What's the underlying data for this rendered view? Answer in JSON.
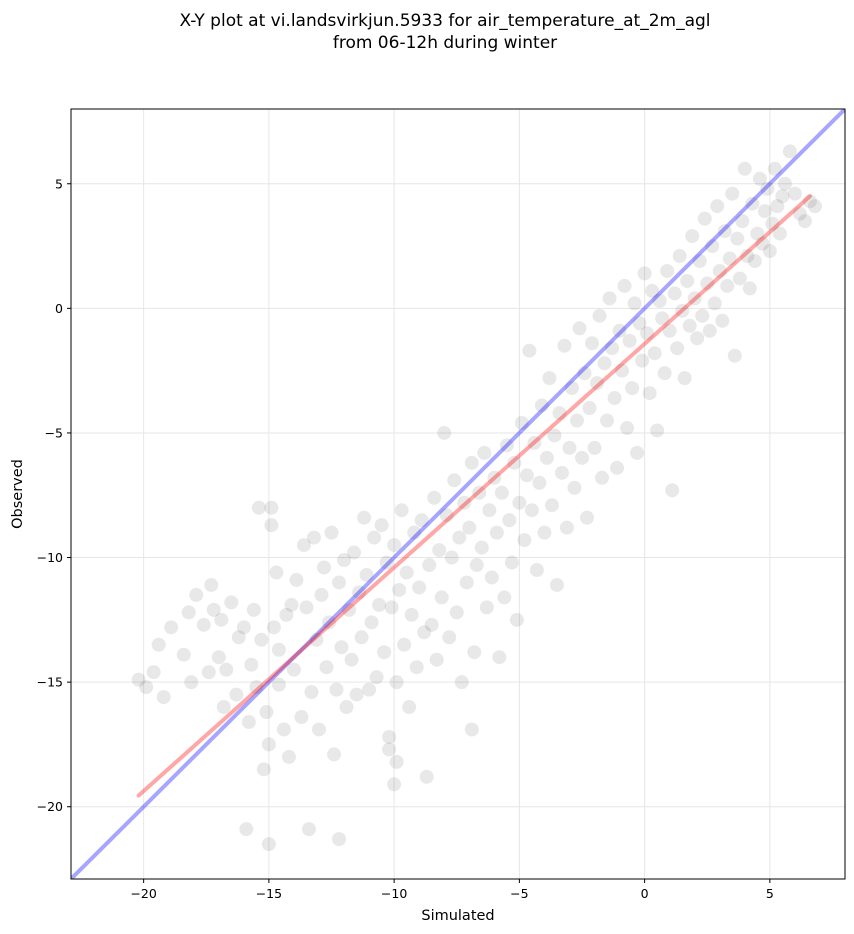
{
  "chart_data": {
    "type": "scatter",
    "title_lines": [
      "X-Y plot at vi.landsvirkjun.5933 for air_temperature_at_2m_agl",
      "from 06-12h during winter"
    ],
    "xlabel": "Simulated",
    "ylabel": "Observed",
    "xlim": [
      -22.9,
      8.0
    ],
    "ylim": [
      -22.9,
      8.0
    ],
    "xticks": [
      -20,
      -15,
      -10,
      -5,
      0,
      5
    ],
    "yticks": [
      -20,
      -15,
      -10,
      -5,
      0,
      5
    ],
    "xtick_labels": [
      "−20",
      "−15",
      "−10",
      "−5",
      "0",
      "5"
    ],
    "ytick_labels": [
      "−20",
      "−15",
      "−10",
      "−5",
      "0",
      "5"
    ],
    "grid": true,
    "point_color": "#000000",
    "point_opacity": 0.09,
    "identity_line": {
      "from": [
        -22.9,
        -22.9
      ],
      "to": [
        8.0,
        8.0
      ],
      "color": "#0000ff"
    },
    "fit_line": {
      "from": [
        -20.2,
        -19.55
      ],
      "to": [
        6.6,
        4.5
      ],
      "color": "#ff0000"
    },
    "points": [
      [
        -20.2,
        -14.9
      ],
      [
        -19.9,
        -15.2
      ],
      [
        -19.6,
        -14.6
      ],
      [
        -19.4,
        -13.5
      ],
      [
        -19.2,
        -15.6
      ],
      [
        -18.9,
        -12.8
      ],
      [
        -18.4,
        -13.9
      ],
      [
        -18.2,
        -12.2
      ],
      [
        -18.1,
        -15.0
      ],
      [
        -17.9,
        -11.5
      ],
      [
        -17.6,
        -12.7
      ],
      [
        -17.4,
        -14.6
      ],
      [
        -17.3,
        -11.1
      ],
      [
        -17.2,
        -12.1
      ],
      [
        -17.0,
        -14.0
      ],
      [
        -16.9,
        -12.5
      ],
      [
        -16.8,
        -16.0
      ],
      [
        -16.7,
        -14.5
      ],
      [
        -16.5,
        -11.8
      ],
      [
        -16.3,
        -15.5
      ],
      [
        -16.2,
        -13.2
      ],
      [
        -16.0,
        -12.8
      ],
      [
        -15.8,
        -16.6
      ],
      [
        -15.7,
        -14.3
      ],
      [
        -15.9,
        -20.9
      ],
      [
        -15.6,
        -12.1
      ],
      [
        -15.5,
        -15.2
      ],
      [
        -15.4,
        -8.0
      ],
      [
        -15.3,
        -13.3
      ],
      [
        -15.1,
        -16.2
      ],
      [
        -15.0,
        -17.5
      ],
      [
        -14.9,
        -8.7
      ],
      [
        -14.8,
        -12.8
      ],
      [
        -14.7,
        -10.6
      ],
      [
        -14.6,
        -15.1
      ],
      [
        -15.2,
        -18.5
      ],
      [
        -15.0,
        -21.5
      ],
      [
        -14.9,
        -8.0
      ],
      [
        -14.6,
        -13.7
      ],
      [
        -14.4,
        -16.9
      ],
      [
        -14.3,
        -12.3
      ],
      [
        -14.2,
        -18.0
      ],
      [
        -14.1,
        -11.9
      ],
      [
        -14.0,
        -14.5
      ],
      [
        -13.9,
        -10.9
      ],
      [
        -13.7,
        -16.4
      ],
      [
        -13.6,
        -9.5
      ],
      [
        -13.5,
        -12.0
      ],
      [
        -13.3,
        -15.4
      ],
      [
        -13.2,
        -9.2
      ],
      [
        -13.1,
        -13.3
      ],
      [
        -13.0,
        -16.9
      ],
      [
        -12.9,
        -11.5
      ],
      [
        -12.8,
        -10.4
      ],
      [
        -12.7,
        -14.4
      ],
      [
        -12.6,
        -12.6
      ],
      [
        -12.5,
        -9.0
      ],
      [
        -12.4,
        -17.9
      ],
      [
        -12.3,
        -15.3
      ],
      [
        -12.2,
        -11.0
      ],
      [
        -12.1,
        -13.6
      ],
      [
        -12.0,
        -10.1
      ],
      [
        -11.9,
        -16.0
      ],
      [
        -11.8,
        -12.1
      ],
      [
        -11.7,
        -14.1
      ],
      [
        -11.6,
        -9.8
      ],
      [
        -11.5,
        -15.5
      ],
      [
        -11.4,
        -11.4
      ],
      [
        -11.3,
        -13.2
      ],
      [
        -11.2,
        -8.4
      ],
      [
        -11.1,
        -10.7
      ],
      [
        -11.0,
        -15.3
      ],
      [
        -10.9,
        -12.6
      ],
      [
        -10.8,
        -9.2
      ],
      [
        -10.7,
        -14.8
      ],
      [
        -10.6,
        -11.9
      ],
      [
        -10.5,
        -8.7
      ],
      [
        -10.4,
        -13.8
      ],
      [
        -10.3,
        -10.2
      ],
      [
        -10.2,
        -17.7
      ],
      [
        -10.1,
        -12.0
      ],
      [
        -10.0,
        -9.5
      ],
      [
        -9.9,
        -15.0
      ],
      [
        -9.8,
        -11.3
      ],
      [
        -9.7,
        -8.1
      ],
      [
        -9.6,
        -13.5
      ],
      [
        -9.5,
        -10.6
      ],
      [
        -9.4,
        -16.0
      ],
      [
        -9.3,
        -12.3
      ],
      [
        -9.2,
        -9.0
      ],
      [
        -9.1,
        -14.4
      ],
      [
        -9.0,
        -11.2
      ],
      [
        -8.9,
        -8.5
      ],
      [
        -8.8,
        -13.0
      ],
      [
        -8.7,
        -18.8
      ],
      [
        -8.6,
        -10.3
      ],
      [
        -8.5,
        -12.7
      ],
      [
        -8.4,
        -7.6
      ],
      [
        -8.3,
        -14.1
      ],
      [
        -8.2,
        -9.7
      ],
      [
        -8.1,
        -11.6
      ],
      [
        -8.0,
        -5.0
      ],
      [
        -7.9,
        -8.3
      ],
      [
        -7.8,
        -13.2
      ],
      [
        -7.7,
        -10.0
      ],
      [
        -7.6,
        -6.9
      ],
      [
        -7.5,
        -12.2
      ],
      [
        -7.4,
        -9.2
      ],
      [
        -7.3,
        -15.0
      ],
      [
        -7.2,
        -7.8
      ],
      [
        -7.1,
        -11.0
      ],
      [
        -7.0,
        -8.8
      ],
      [
        -6.9,
        -6.2
      ],
      [
        -6.8,
        -13.8
      ],
      [
        -6.7,
        -10.3
      ],
      [
        -6.6,
        -7.4
      ],
      [
        -6.5,
        -9.6
      ],
      [
        -6.4,
        -5.8
      ],
      [
        -6.3,
        -12.0
      ],
      [
        -6.2,
        -8.1
      ],
      [
        -6.1,
        -10.8
      ],
      [
        -6.0,
        -6.8
      ],
      [
        -5.9,
        -9.0
      ],
      [
        -5.8,
        -14.0
      ],
      [
        -5.7,
        -7.4
      ],
      [
        -5.6,
        -11.6
      ],
      [
        -5.5,
        -5.5
      ],
      [
        -5.4,
        -8.5
      ],
      [
        -5.3,
        -10.2
      ],
      [
        -5.2,
        -6.2
      ],
      [
        -5.1,
        -12.5
      ],
      [
        -5.0,
        -7.8
      ],
      [
        -4.9,
        -4.6
      ],
      [
        -4.8,
        -9.3
      ],
      [
        -4.7,
        -6.7
      ],
      [
        -4.6,
        -1.7
      ],
      [
        -4.5,
        -8.1
      ],
      [
        -4.4,
        -5.4
      ],
      [
        -4.3,
        -10.5
      ],
      [
        -4.2,
        -7.0
      ],
      [
        -4.1,
        -3.9
      ],
      [
        -4.0,
        -9.0
      ],
      [
        -3.9,
        -6.0
      ],
      [
        -3.8,
        -2.8
      ],
      [
        -3.7,
        -7.9
      ],
      [
        -3.6,
        -5.1
      ],
      [
        -3.5,
        -11.1
      ],
      [
        -3.4,
        -4.2
      ],
      [
        -3.3,
        -6.6
      ],
      [
        -3.2,
        -1.5
      ],
      [
        -3.1,
        -8.8
      ],
      [
        -3.0,
        -5.6
      ],
      [
        -2.9,
        -3.2
      ],
      [
        -2.8,
        -7.2
      ],
      [
        -2.7,
        -4.5
      ],
      [
        -2.6,
        -0.8
      ],
      [
        -2.5,
        -6.0
      ],
      [
        -2.4,
        -2.6
      ],
      [
        -2.3,
        -8.4
      ],
      [
        -2.2,
        -4.0
      ],
      [
        -2.1,
        -1.4
      ],
      [
        -2.0,
        -5.6
      ],
      [
        -1.9,
        -3.0
      ],
      [
        -1.8,
        -0.3
      ],
      [
        -1.7,
        -6.8
      ],
      [
        -1.6,
        -2.2
      ],
      [
        -1.5,
        -4.5
      ],
      [
        -1.4,
        0.4
      ],
      [
        -1.3,
        -1.6
      ],
      [
        -1.2,
        -3.6
      ],
      [
        -1.1,
        -6.4
      ],
      [
        -1.0,
        -0.9
      ],
      [
        -0.9,
        -2.5
      ],
      [
        -0.8,
        0.9
      ],
      [
        -0.7,
        -4.8
      ],
      [
        -0.6,
        -1.3
      ],
      [
        -0.5,
        -3.2
      ],
      [
        -0.4,
        0.2
      ],
      [
        -0.3,
        -5.8
      ],
      [
        -0.2,
        -0.6
      ],
      [
        -0.1,
        -2.1
      ],
      [
        0.0,
        1.4
      ],
      [
        0.1,
        -1.0
      ],
      [
        0.2,
        -3.4
      ],
      [
        0.3,
        0.7
      ],
      [
        0.4,
        -1.8
      ],
      [
        0.5,
        -4.9
      ],
      [
        0.6,
        0.3
      ],
      [
        0.7,
        -0.4
      ],
      [
        0.8,
        -2.6
      ],
      [
        0.9,
        1.5
      ],
      [
        1.0,
        -0.9
      ],
      [
        1.1,
        -7.3
      ],
      [
        1.2,
        0.6
      ],
      [
        1.3,
        -1.6
      ],
      [
        1.4,
        2.1
      ],
      [
        1.5,
        -0.1
      ],
      [
        1.6,
        -2.8
      ],
      [
        1.7,
        1.1
      ],
      [
        1.8,
        -0.7
      ],
      [
        1.9,
        2.9
      ],
      [
        2.0,
        0.4
      ],
      [
        2.1,
        -1.2
      ],
      [
        2.2,
        1.9
      ],
      [
        2.3,
        -0.3
      ],
      [
        2.4,
        3.6
      ],
      [
        2.5,
        1.0
      ],
      [
        2.6,
        -0.9
      ],
      [
        2.7,
        2.5
      ],
      [
        2.8,
        0.2
      ],
      [
        2.9,
        4.1
      ],
      [
        3.0,
        1.5
      ],
      [
        3.1,
        -0.5
      ],
      [
        3.2,
        3.1
      ],
      [
        3.3,
        0.9
      ],
      [
        3.4,
        2.0
      ],
      [
        3.5,
        4.6
      ],
      [
        3.6,
        -1.9
      ],
      [
        3.7,
        2.8
      ],
      [
        3.8,
        1.2
      ],
      [
        3.9,
        3.5
      ],
      [
        4.0,
        5.6
      ],
      [
        4.1,
        2.1
      ],
      [
        4.2,
        0.8
      ],
      [
        4.3,
        4.2
      ],
      [
        4.4,
        1.9
      ],
      [
        4.5,
        3.0
      ],
      [
        4.6,
        5.2
      ],
      [
        4.7,
        2.6
      ],
      [
        4.8,
        3.9
      ],
      [
        4.9,
        4.8
      ],
      [
        5.0,
        2.3
      ],
      [
        5.1,
        3.4
      ],
      [
        5.2,
        5.6
      ],
      [
        5.3,
        4.1
      ],
      [
        5.4,
        3.0
      ],
      [
        5.5,
        4.5
      ],
      [
        5.6,
        5.0
      ],
      [
        5.8,
        6.3
      ],
      [
        6.0,
        4.6
      ],
      [
        6.2,
        3.8
      ],
      [
        6.4,
        3.5
      ],
      [
        6.6,
        4.3
      ],
      [
        6.8,
        4.1
      ],
      [
        -12.2,
        -21.3
      ],
      [
        -13.4,
        -20.9
      ],
      [
        -10.0,
        -19.1
      ],
      [
        -9.9,
        -18.2
      ],
      [
        -10.2,
        -17.2
      ],
      [
        -6.9,
        -16.9
      ]
    ]
  }
}
